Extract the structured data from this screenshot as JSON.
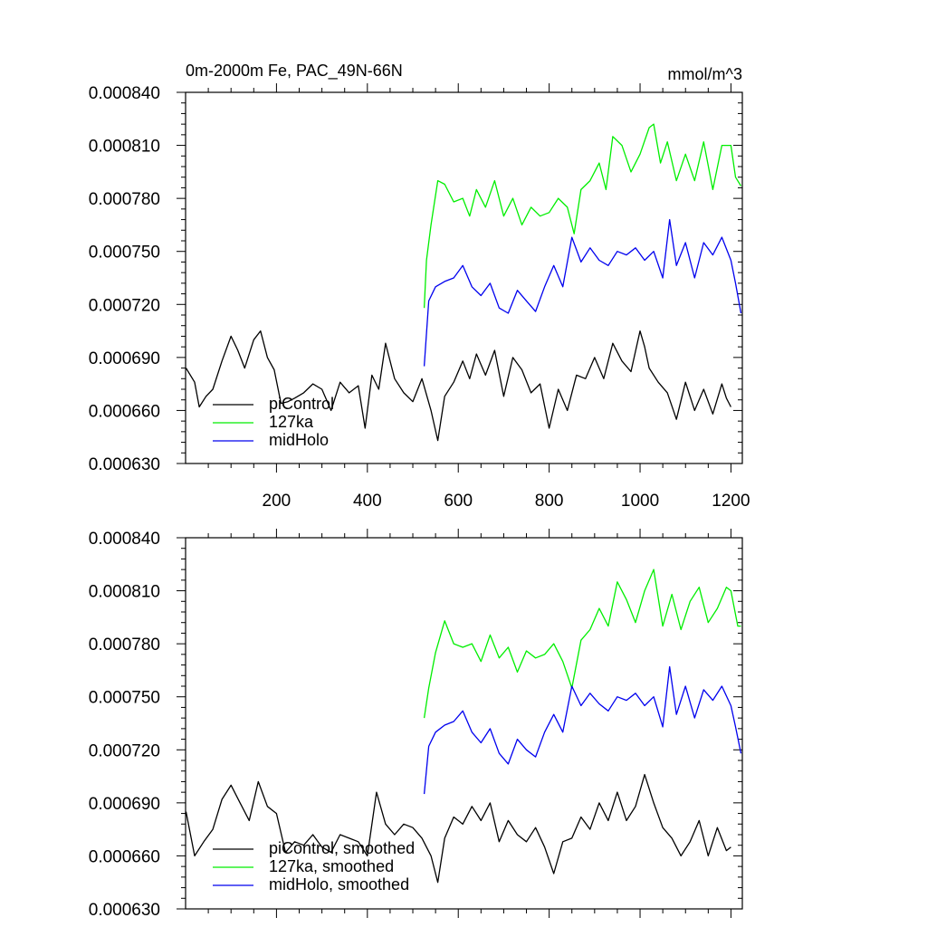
{
  "chart_data": [
    {
      "type": "line",
      "title": "0m-2000m Fe, PAC_49N-66N",
      "units": "mmol/m^3",
      "xlabel": "",
      "ylabel": "",
      "xlim": [
        0,
        1225
      ],
      "ylim": [
        0.00063,
        0.00084
      ],
      "xticks": [
        200,
        400,
        600,
        800,
        1000,
        1200
      ],
      "xtick_labels": [
        "200",
        "400",
        "600",
        "800",
        "1000",
        "1200"
      ],
      "yticks": [
        0.00063,
        0.00066,
        0.00069,
        0.00072,
        0.00075,
        0.00078,
        0.00081,
        0.00084
      ],
      "ytick_labels": [
        "0.000630",
        "0.000660",
        "0.000690",
        "0.000720",
        "0.000750",
        "0.000780",
        "0.000810",
        "0.000840"
      ],
      "legend_position": "bottom-left",
      "series": [
        {
          "name": "piControl",
          "color": "#000000",
          "x": [
            1,
            20,
            30,
            45,
            60,
            80,
            100,
            115,
            130,
            150,
            165,
            180,
            195,
            210,
            225,
            240,
            260,
            280,
            300,
            320,
            340,
            360,
            380,
            395,
            410,
            425,
            440,
            460,
            480,
            500,
            520,
            540,
            555,
            570,
            590,
            610,
            625,
            640,
            660,
            680,
            700,
            720,
            740,
            760,
            780,
            800,
            820,
            840,
            860,
            880,
            900,
            920,
            940,
            960,
            980,
            1000,
            1010,
            1020,
            1040,
            1060,
            1080,
            1100,
            1120,
            1140,
            1160,
            1180,
            1190,
            1200
          ],
          "values": [
            0.000684,
            0.000676,
            0.000662,
            0.000668,
            0.000672,
            0.000688,
            0.000702,
            0.000694,
            0.000684,
            0.0007,
            0.000705,
            0.00069,
            0.000683,
            0.000664,
            0.000665,
            0.000667,
            0.00067,
            0.000675,
            0.000672,
            0.00066,
            0.000676,
            0.00067,
            0.000674,
            0.00065,
            0.00068,
            0.000672,
            0.000698,
            0.000678,
            0.00067,
            0.000665,
            0.000678,
            0.00066,
            0.000643,
            0.000668,
            0.000676,
            0.000688,
            0.000678,
            0.000692,
            0.00068,
            0.000694,
            0.000668,
            0.00069,
            0.000683,
            0.00067,
            0.000675,
            0.00065,
            0.000672,
            0.00066,
            0.00068,
            0.000678,
            0.00069,
            0.000678,
            0.000698,
            0.000688,
            0.000682,
            0.000705,
            0.000696,
            0.000684,
            0.000676,
            0.00067,
            0.000655,
            0.000676,
            0.00066,
            0.000672,
            0.000658,
            0.000675,
            0.000667,
            0.000662
          ]
        },
        {
          "name": "127ka",
          "color": "#00ee00",
          "x": [
            525,
            530,
            540,
            555,
            570,
            590,
            610,
            625,
            640,
            660,
            680,
            700,
            720,
            740,
            760,
            780,
            800,
            820,
            840,
            855,
            870,
            890,
            910,
            925,
            940,
            960,
            980,
            1000,
            1020,
            1030,
            1045,
            1060,
            1080,
            1100,
            1120,
            1140,
            1160,
            1180,
            1200,
            1210,
            1222
          ],
          "values": [
            0.000718,
            0.000745,
            0.000765,
            0.00079,
            0.000788,
            0.000778,
            0.00078,
            0.00077,
            0.000785,
            0.000775,
            0.00079,
            0.00077,
            0.00078,
            0.000765,
            0.000775,
            0.00077,
            0.000772,
            0.00078,
            0.000775,
            0.00076,
            0.000785,
            0.00079,
            0.0008,
            0.000785,
            0.000815,
            0.00081,
            0.000795,
            0.000805,
            0.00082,
            0.000822,
            0.0008,
            0.000812,
            0.00079,
            0.000805,
            0.00079,
            0.000812,
            0.000785,
            0.00081,
            0.00081,
            0.000792,
            0.000787
          ]
        },
        {
          "name": "midHolo",
          "color": "#0000ee",
          "x": [
            525,
            535,
            550,
            570,
            590,
            610,
            630,
            650,
            670,
            690,
            710,
            730,
            750,
            770,
            790,
            810,
            830,
            850,
            870,
            890,
            910,
            930,
            950,
            970,
            990,
            1010,
            1030,
            1050,
            1065,
            1080,
            1100,
            1120,
            1140,
            1160,
            1180,
            1200,
            1210,
            1222
          ],
          "values": [
            0.000685,
            0.000722,
            0.00073,
            0.000733,
            0.000735,
            0.000742,
            0.00073,
            0.000725,
            0.000732,
            0.000718,
            0.000715,
            0.000728,
            0.000722,
            0.000716,
            0.00073,
            0.000742,
            0.00073,
            0.000758,
            0.000744,
            0.000752,
            0.000745,
            0.000742,
            0.00075,
            0.000748,
            0.000752,
            0.000745,
            0.00075,
            0.000735,
            0.000768,
            0.000742,
            0.000755,
            0.000735,
            0.000755,
            0.000748,
            0.000758,
            0.000745,
            0.000732,
            0.000715
          ]
        }
      ]
    },
    {
      "type": "line",
      "title": "",
      "xlabel": "",
      "ylabel": "",
      "xlim": [
        0,
        1225
      ],
      "ylim": [
        0.00063,
        0.00084
      ],
      "yticks": [
        0.00063,
        0.00066,
        0.00069,
        0.00072,
        0.00075,
        0.00078,
        0.00081,
        0.00084
      ],
      "ytick_labels": [
        "0.000630",
        "0.000660",
        "0.000690",
        "0.000720",
        "0.000750",
        "0.000780",
        "0.000810",
        "0.000840"
      ],
      "legend_position": "bottom-left",
      "series": [
        {
          "name": "piControl, smoothed",
          "color": "#000000",
          "x": [
            1,
            20,
            40,
            60,
            80,
            100,
            120,
            140,
            160,
            180,
            200,
            220,
            240,
            260,
            280,
            300,
            320,
            340,
            360,
            380,
            400,
            420,
            440,
            460,
            480,
            500,
            520,
            540,
            555,
            570,
            590,
            610,
            630,
            650,
            670,
            690,
            710,
            730,
            750,
            770,
            790,
            810,
            830,
            850,
            870,
            890,
            910,
            930,
            950,
            970,
            990,
            1010,
            1030,
            1050,
            1070,
            1090,
            1110,
            1130,
            1150,
            1170,
            1190,
            1200
          ],
          "values": [
            0.000685,
            0.00066,
            0.000668,
            0.000675,
            0.000692,
            0.0007,
            0.00069,
            0.00068,
            0.000702,
            0.000688,
            0.000684,
            0.000662,
            0.000668,
            0.000666,
            0.000672,
            0.000665,
            0.000662,
            0.000672,
            0.00067,
            0.000668,
            0.00066,
            0.000696,
            0.000678,
            0.000672,
            0.000678,
            0.000676,
            0.00067,
            0.00066,
            0.000645,
            0.00067,
            0.000682,
            0.000678,
            0.000688,
            0.00068,
            0.00069,
            0.000668,
            0.00068,
            0.000672,
            0.000668,
            0.000676,
            0.000665,
            0.00065,
            0.000668,
            0.00067,
            0.000682,
            0.000675,
            0.00069,
            0.00068,
            0.000696,
            0.00068,
            0.000688,
            0.000706,
            0.00069,
            0.000676,
            0.00067,
            0.00066,
            0.000668,
            0.00068,
            0.00066,
            0.000676,
            0.000663,
            0.000665
          ]
        },
        {
          "name": "127ka, smoothed",
          "color": "#00ee00",
          "x": [
            525,
            535,
            550,
            570,
            590,
            610,
            630,
            650,
            670,
            690,
            710,
            730,
            750,
            770,
            790,
            810,
            830,
            850,
            870,
            890,
            910,
            930,
            950,
            970,
            990,
            1010,
            1030,
            1050,
            1070,
            1090,
            1110,
            1130,
            1150,
            1170,
            1190,
            1200,
            1215,
            1222
          ],
          "values": [
            0.000738,
            0.000755,
            0.000775,
            0.000793,
            0.00078,
            0.000778,
            0.00078,
            0.00077,
            0.000785,
            0.000772,
            0.000778,
            0.000764,
            0.000776,
            0.000772,
            0.000774,
            0.00078,
            0.00077,
            0.000755,
            0.000782,
            0.000788,
            0.0008,
            0.00079,
            0.000815,
            0.000805,
            0.000792,
            0.00081,
            0.000822,
            0.00079,
            0.000808,
            0.000788,
            0.000804,
            0.000812,
            0.000792,
            0.0008,
            0.000812,
            0.00081,
            0.00079,
            0.00079
          ]
        },
        {
          "name": "midHolo, smoothed",
          "color": "#0000ee",
          "x": [
            525,
            535,
            550,
            570,
            590,
            610,
            630,
            650,
            670,
            690,
            710,
            730,
            750,
            770,
            790,
            810,
            830,
            850,
            870,
            890,
            910,
            930,
            950,
            970,
            990,
            1010,
            1030,
            1050,
            1065,
            1080,
            1100,
            1120,
            1140,
            1160,
            1180,
            1200,
            1210,
            1222
          ],
          "values": [
            0.000695,
            0.000722,
            0.00073,
            0.000734,
            0.000736,
            0.000742,
            0.00073,
            0.000724,
            0.000732,
            0.000718,
            0.000712,
            0.000726,
            0.00072,
            0.000716,
            0.00073,
            0.00074,
            0.00073,
            0.000756,
            0.000745,
            0.000752,
            0.000746,
            0.000742,
            0.00075,
            0.000748,
            0.000752,
            0.000745,
            0.00075,
            0.000733,
            0.000767,
            0.00074,
            0.000756,
            0.000738,
            0.000754,
            0.000748,
            0.000756,
            0.000745,
            0.000733,
            0.000718
          ]
        }
      ]
    }
  ]
}
